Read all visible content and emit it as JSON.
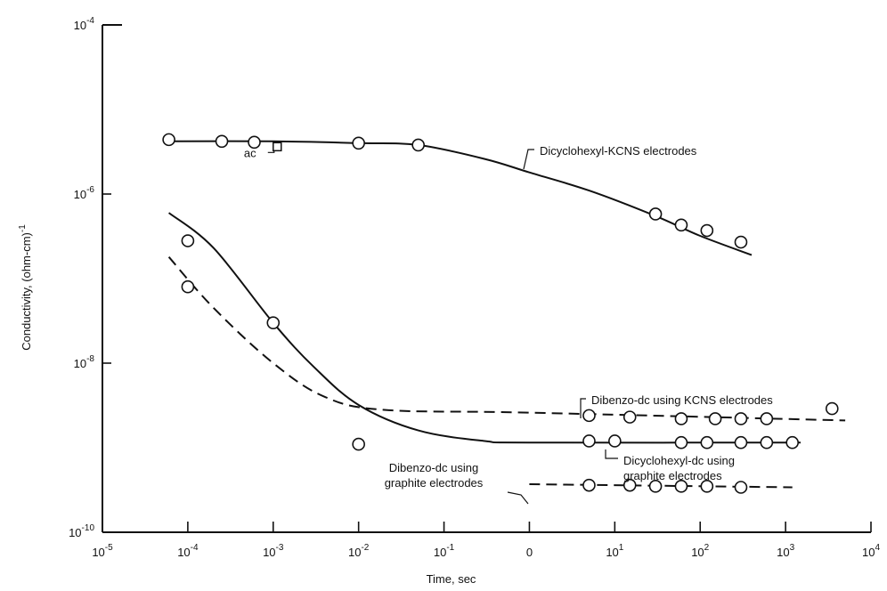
{
  "chart_data": {
    "type": "line",
    "title": "",
    "xlabel": "Time, sec",
    "ylabel": "Conductivity, (ohm-cm)",
    "ylabel_exponent": "-1",
    "x_scale": "log",
    "y_scale": "log",
    "xlim": [
      1e-05,
      10000
    ],
    "ylim": [
      1e-10,
      0.0001
    ],
    "x_ticks": [
      {
        "value": 1e-05,
        "base": "10",
        "exp": "-5"
      },
      {
        "value": 0.0001,
        "base": "10",
        "exp": "-4"
      },
      {
        "value": 0.001,
        "base": "10",
        "exp": "-3"
      },
      {
        "value": 0.01,
        "base": "10",
        "exp": "-2"
      },
      {
        "value": 0.1,
        "base": "10",
        "exp": "-1"
      },
      {
        "value": 1,
        "base": "0",
        "exp": ""
      },
      {
        "value": 10,
        "base": "10",
        "exp": "1"
      },
      {
        "value": 100,
        "base": "10",
        "exp": "2"
      },
      {
        "value": 1000,
        "base": "10",
        "exp": "3"
      },
      {
        "value": 10000,
        "base": "10",
        "exp": "4"
      }
    ],
    "y_ticks": [
      {
        "value": 1e-10,
        "base": "10",
        "exp": "-10"
      },
      {
        "value": 1e-08,
        "base": "10",
        "exp": "-8"
      },
      {
        "value": 1e-06,
        "base": "10",
        "exp": "-6"
      },
      {
        "value": 0.0001,
        "base": "10",
        "exp": "-4"
      }
    ],
    "grid": false,
    "series": [
      {
        "name": "Dicyclohexyl-KCNS electrodes",
        "style": "solid",
        "curve": [
          [
            6e-05,
            4.2e-06
          ],
          [
            0.001,
            4.2e-06
          ],
          [
            0.01,
            4e-06
          ],
          [
            0.05,
            3.8e-06
          ],
          [
            0.3,
            2.6e-06
          ],
          [
            1,
            1.8e-06
          ],
          [
            5,
            1.1e-06
          ],
          [
            30,
            5.5e-07
          ],
          [
            100,
            3.2e-07
          ],
          [
            400,
            1.9e-07
          ]
        ],
        "points": [
          [
            6e-05,
            4.4e-06
          ],
          [
            0.00025,
            4.2e-06
          ],
          [
            0.0006,
            4.1e-06
          ],
          [
            0.01,
            4e-06
          ],
          [
            0.05,
            3.8e-06
          ],
          [
            30,
            5.8e-07
          ],
          [
            60,
            4.3e-07
          ],
          [
            120,
            3.7e-07
          ],
          [
            300,
            2.7e-07
          ]
        ]
      },
      {
        "name": "Dibenzo-dc using KCNS electrodes",
        "style": "dashed",
        "curve": [
          [
            6e-05,
            1.8e-07
          ],
          [
            0.0002,
            4.5e-08
          ],
          [
            0.001,
            1e-08
          ],
          [
            0.004,
            4e-09
          ],
          [
            0.02,
            2.8e-09
          ],
          [
            1,
            2.6e-09
          ],
          [
            5000,
            2.1e-09
          ]
        ],
        "points": [
          [
            0.0001,
            8e-08
          ],
          [
            5,
            2.4e-09
          ],
          [
            15,
            2.3e-09
          ],
          [
            60,
            2.2e-09
          ],
          [
            150,
            2.2e-09
          ],
          [
            300,
            2.2e-09
          ],
          [
            600,
            2.2e-09
          ],
          [
            3500,
            2.9e-09
          ]
        ]
      },
      {
        "name": "Dicyclohexyl-dc using graphite electrodes",
        "style": "solid",
        "curve": [
          [
            6e-05,
            6e-07
          ],
          [
            0.0002,
            2.3e-07
          ],
          [
            0.001,
            3e-08
          ],
          [
            0.003,
            9e-09
          ],
          [
            0.01,
            3.2e-09
          ],
          [
            0.05,
            1.6e-09
          ],
          [
            0.3,
            1.2e-09
          ],
          [
            1,
            1.15e-09
          ],
          [
            1500,
            1.15e-09
          ]
        ],
        "points": [
          [
            0.0001,
            2.8e-07
          ],
          [
            0.001,
            3e-08
          ],
          [
            5,
            1.2e-09
          ],
          [
            10,
            1.2e-09
          ],
          [
            60,
            1.15e-09
          ],
          [
            120,
            1.15e-09
          ],
          [
            300,
            1.15e-09
          ],
          [
            600,
            1.15e-09
          ],
          [
            1200,
            1.15e-09
          ]
        ]
      },
      {
        "name": "Dibenzo-dc using graphite electrodes",
        "style": "dashed",
        "curve": [
          [
            1,
            3.7e-10
          ],
          [
            1200,
            3.4e-10
          ]
        ],
        "points": [
          [
            0.01,
            1.1e-09
          ],
          [
            5,
            3.6e-10
          ],
          [
            15,
            3.6e-10
          ],
          [
            30,
            3.5e-10
          ],
          [
            60,
            3.5e-10
          ],
          [
            120,
            3.5e-10
          ],
          [
            300,
            3.4e-10
          ]
        ]
      }
    ],
    "annotations": [
      {
        "text": "ac",
        "x": 0.001,
        "y": 3.5e-06,
        "marker": "square"
      }
    ]
  }
}
